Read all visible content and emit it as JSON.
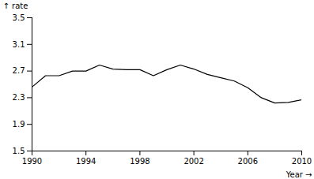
{
  "chart_data": {
    "type": "line",
    "x": [
      1990,
      1991,
      1992,
      1993,
      1994,
      1995,
      1996,
      1997,
      1998,
      1999,
      2000,
      2001,
      2002,
      2003,
      2004,
      2005,
      2006,
      2007,
      2008,
      2009,
      2010
    ],
    "values": [
      2.46,
      2.63,
      2.63,
      2.7,
      2.7,
      2.79,
      2.73,
      2.72,
      2.72,
      2.63,
      2.72,
      2.79,
      2.73,
      2.65,
      2.6,
      2.55,
      2.45,
      2.3,
      2.22,
      2.23,
      2.27
    ],
    "xlabel": "Year",
    "ylabel": "rate",
    "xlim": [
      1990,
      2010
    ],
    "ylim": [
      1.5,
      3.5
    ],
    "xticks": [
      1990,
      1994,
      1998,
      2002,
      2006,
      2010
    ],
    "yticks": [
      1.5,
      1.9,
      2.3,
      2.7,
      3.1,
      3.5
    ],
    "color": "#000000",
    "grid": false
  }
}
